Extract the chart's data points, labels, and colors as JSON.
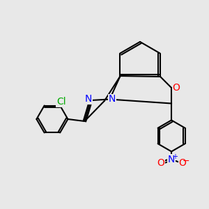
{
  "bg_color": "#e8e8e8",
  "bond_color": "#000000",
  "bond_lw": 1.5,
  "atom_colors": {
    "N": "#0000ff",
    "O": "#ff0000",
    "Cl": "#00aa00"
  },
  "font_size": 9,
  "fig_size": [
    3.0,
    3.0
  ],
  "dpi": 100
}
